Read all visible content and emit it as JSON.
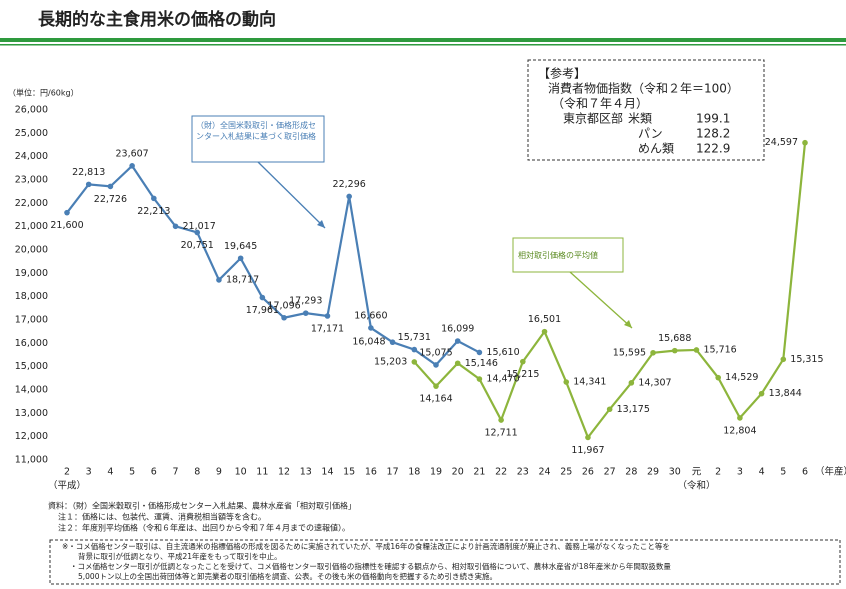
{
  "title": "長期的な主食用米の価格の動向",
  "chart_data": {
    "type": "line",
    "unit_label": "（単位：円/60kg）",
    "categories": [
      "2",
      "3",
      "4",
      "5",
      "6",
      "7",
      "8",
      "9",
      "10",
      "11",
      "12",
      "13",
      "14",
      "15",
      "16",
      "17",
      "18",
      "19",
      "20",
      "21",
      "22",
      "23",
      "24",
      "25",
      "26",
      "27",
      "28",
      "29",
      "30",
      "元",
      "2",
      "3",
      "4",
      "5",
      "6"
    ],
    "era_labels": [
      {
        "index": 0,
        "label": "（平成）"
      },
      {
        "index": 29,
        "label": "（令和）"
      }
    ],
    "x_unit": "（年産）",
    "ylim": [
      11000,
      26000
    ],
    "yticks": [
      {
        "value": 11000,
        "label": "11,000"
      },
      {
        "value": 12000,
        "label": "12,000"
      },
      {
        "value": 13000,
        "label": "13,000"
      },
      {
        "value": 14000,
        "label": "14,000"
      },
      {
        "value": 15000,
        "label": "15,000"
      },
      {
        "value": 16000,
        "label": "16,000"
      },
      {
        "value": 17000,
        "label": "17,000"
      },
      {
        "value": 18000,
        "label": "18,000"
      },
      {
        "value": 19000,
        "label": "19,000"
      },
      {
        "value": 20000,
        "label": "20,000"
      },
      {
        "value": 21000,
        "label": "21,000"
      },
      {
        "value": 22000,
        "label": "22,000"
      },
      {
        "value": 23000,
        "label": "23,000"
      },
      {
        "value": 24000,
        "label": "24,000"
      },
      {
        "value": 25000,
        "label": "25,000"
      },
      {
        "value": 26000,
        "label": "26,000"
      }
    ],
    "grid": false,
    "series": [
      {
        "name": "（財）全国米穀取引・価格形成センター入札結果に基づく取引価格",
        "color": "#4a7fb5",
        "values": [
          21600,
          22813,
          22726,
          23607,
          22213,
          21017,
          20751,
          18717,
          19645,
          17961,
          17096,
          17293,
          17171,
          22296,
          16660,
          16048,
          15731,
          15075,
          16099,
          15610,
          null,
          null,
          null,
          null,
          null,
          null,
          null,
          null,
          null,
          null,
          null,
          null,
          null,
          null,
          null
        ],
        "value_labels": [
          "21,600",
          "22,813",
          "22,726",
          "23,607",
          "22,213",
          "21,017",
          "20,751",
          "18,717",
          "19,645",
          "17,961",
          "17,096",
          "17,293",
          "17,171",
          "22,296",
          "16,660",
          "16,048",
          "15,731",
          "15,075",
          "16,099",
          "15,610",
          null,
          null,
          null,
          null,
          null,
          null,
          null,
          null,
          null,
          null,
          null,
          null,
          null,
          null,
          null
        ]
      },
      {
        "name": "相対取引価格の平均値",
        "color": "#8db53c",
        "values": [
          null,
          null,
          null,
          null,
          null,
          null,
          null,
          null,
          null,
          null,
          null,
          null,
          null,
          null,
          null,
          null,
          15203,
          14164,
          15146,
          14470,
          12711,
          15215,
          16501,
          14341,
          11967,
          13175,
          14307,
          15595,
          15688,
          15716,
          14529,
          12804,
          13844,
          15315,
          24597
        ],
        "value_labels": [
          null,
          null,
          null,
          null,
          null,
          null,
          null,
          null,
          null,
          null,
          null,
          null,
          null,
          null,
          null,
          null,
          "15,203",
          "14,164",
          "15,146",
          "14,470",
          "12,711",
          "15,215",
          "16,501",
          "14,341",
          "11,967",
          "13,175",
          "14,307",
          "15,595",
          "15,688",
          "15,716",
          "14,529",
          "12,804",
          "13,844",
          "15,315",
          "24,597"
        ]
      }
    ]
  },
  "reference": {
    "heading": "【参考】",
    "line1": "消費者物価指数（令和２年＝100）",
    "line2": "（令和７年４月）",
    "area": "東京都区部",
    "rows": [
      [
        "米類",
        "199.1"
      ],
      [
        "パン",
        "128.2"
      ],
      [
        "めん類",
        "122.9"
      ]
    ]
  },
  "sources": [
    "資料：（財）全国米穀取引・価格形成センター入札結果、農林水産省「相対取引価格」",
    "注１：価格には、包装代、運賃、消費税相当額等を含む。",
    "注２：年度別平均価格（令和６年産は、出回りから令和７年４月までの速報値）。"
  ],
  "notes": [
    "※・コメ価格センター取引は、自主流通米の指標価格の形成を図るために実施されていたが、平成16年の食糧法改正により計画流通制度が廃止され、義務上場がなくなったこと等を",
    "背景に取引が低調となり、平成21年産をもって取引を中止。",
    "・コメ価格センター取引が低調となったことを受けて、コメ価格センター取引価格の指標性を確認する観点から、相対取引価格について、農林水産省が18年産米から年間取扱数量",
    "5,000トン以上の全国出荷団体等と卸売業者の取引価格を調査、公表。その後も米の価格動向を把握するため引き続き実施。"
  ]
}
